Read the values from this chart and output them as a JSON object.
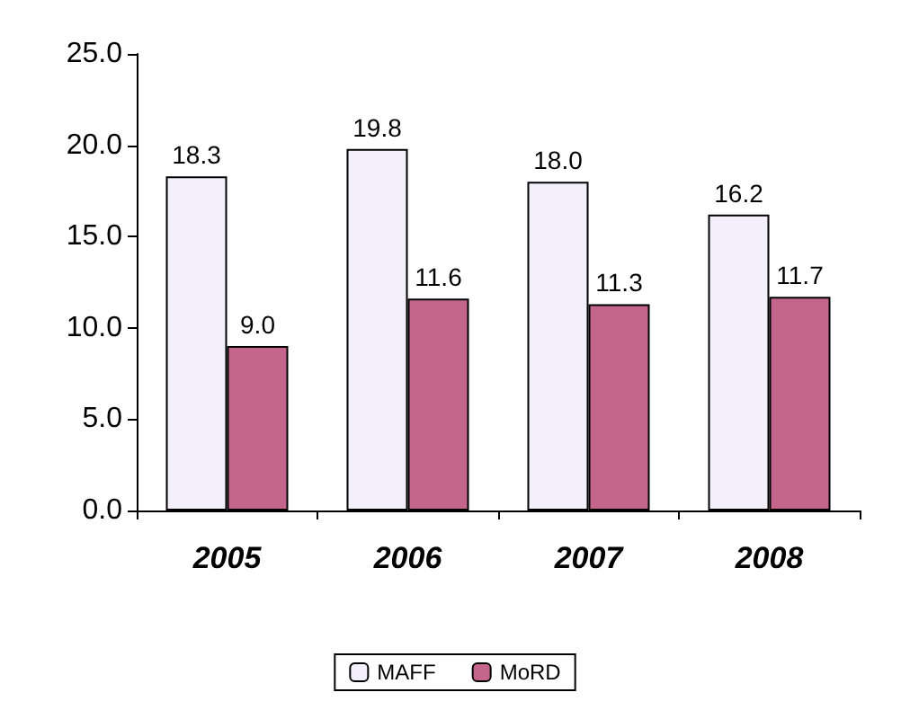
{
  "chart_data": {
    "type": "bar",
    "categories": [
      "2005",
      "2006",
      "2007",
      "2008"
    ],
    "series": [
      {
        "name": "MAFF",
        "color": "#f3f0fb",
        "values": [
          18.3,
          19.8,
          18.0,
          16.2
        ],
        "value_labels": [
          "18.3",
          "19.8",
          "18.0",
          "16.2"
        ]
      },
      {
        "name": "MoRD",
        "color": "#c4668c",
        "values": [
          9.0,
          11.6,
          11.3,
          11.7
        ],
        "value_labels": [
          "9.0",
          "11.6",
          "11.3",
          "11.7"
        ]
      }
    ],
    "ylim": [
      0,
      25
    ],
    "yticks": [
      {
        "value": 0,
        "label": "0.0"
      },
      {
        "value": 5,
        "label": "5.0"
      },
      {
        "value": 10,
        "label": "10.0"
      },
      {
        "value": 15,
        "label": "15.0"
      },
      {
        "value": 20,
        "label": "20.0"
      },
      {
        "value": 25,
        "label": "25.0"
      }
    ],
    "grid": false,
    "legend": "bottom"
  }
}
